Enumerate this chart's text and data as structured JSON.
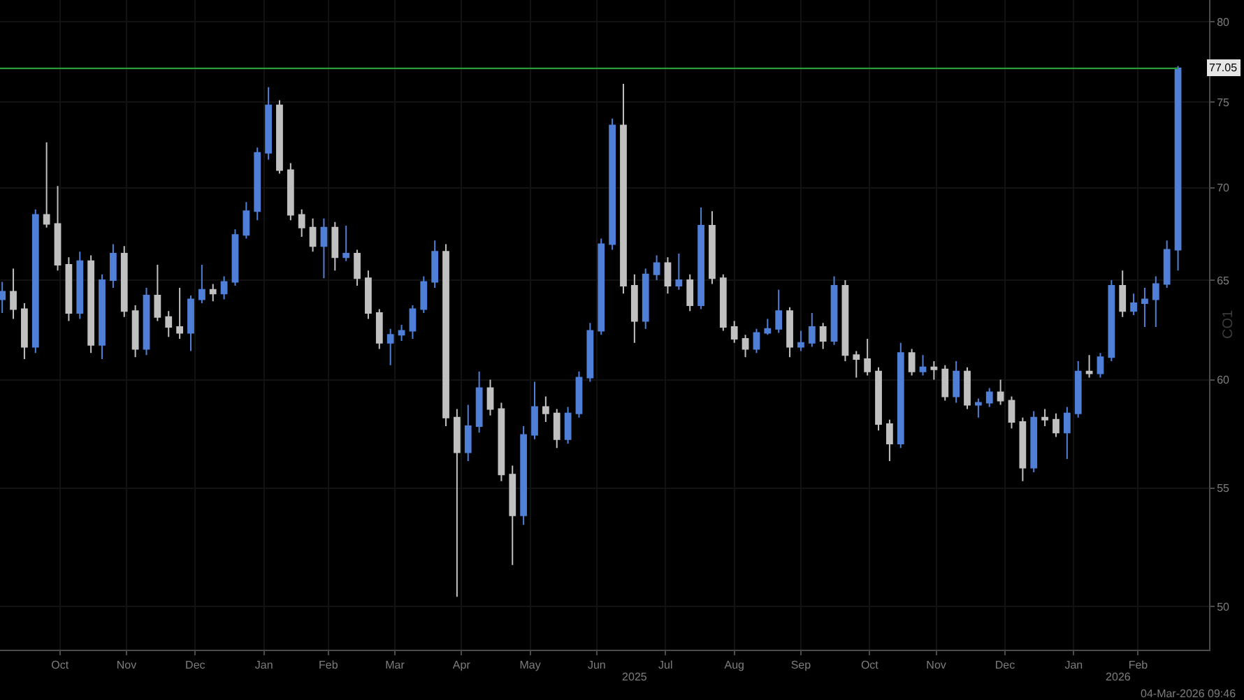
{
  "chart_data": {
    "type": "candlestick",
    "x": [
      "2024-09-20",
      "2024-09-25",
      "2024-09-30",
      "2024-10-05",
      "2024-10-10",
      "2024-10-15",
      "2024-10-20",
      "2024-10-25",
      "2024-10-30",
      "2024-11-04",
      "2024-11-09",
      "2024-11-14",
      "2024-11-19",
      "2024-11-24",
      "2024-11-29",
      "2024-12-04",
      "2024-12-09",
      "2024-12-14",
      "2024-12-19",
      "2024-12-24",
      "2024-12-29",
      "2025-01-03",
      "2025-01-08",
      "2025-01-13",
      "2025-01-18",
      "2025-01-23",
      "2025-01-28",
      "2025-02-02",
      "2025-02-07",
      "2025-02-12",
      "2025-02-17",
      "2025-02-22",
      "2025-02-27",
      "2025-03-04",
      "2025-03-09",
      "2025-03-14",
      "2025-03-19",
      "2025-03-24",
      "2025-03-29",
      "2025-04-03",
      "2025-04-08",
      "2025-04-13",
      "2025-04-18",
      "2025-04-23",
      "2025-04-28",
      "2025-05-03",
      "2025-05-08",
      "2025-05-13",
      "2025-05-18",
      "2025-05-23",
      "2025-05-28",
      "2025-06-02",
      "2025-06-07",
      "2025-06-12",
      "2025-06-17",
      "2025-06-22",
      "2025-06-27",
      "2025-07-02",
      "2025-07-07",
      "2025-07-12",
      "2025-07-17",
      "2025-07-22",
      "2025-07-27",
      "2025-08-01",
      "2025-08-06",
      "2025-08-11",
      "2025-08-16",
      "2025-08-21",
      "2025-08-26",
      "2025-08-31",
      "2025-09-05",
      "2025-09-10",
      "2025-09-15",
      "2025-09-20",
      "2025-09-25",
      "2025-09-30",
      "2025-10-05",
      "2025-10-10",
      "2025-10-15",
      "2025-10-20",
      "2025-10-25",
      "2025-10-30",
      "2025-11-04",
      "2025-11-09",
      "2025-11-14",
      "2025-11-19",
      "2025-11-24",
      "2025-11-29",
      "2025-12-04",
      "2025-12-09",
      "2025-12-14",
      "2025-12-19",
      "2025-12-24",
      "2025-12-29",
      "2026-01-03",
      "2026-01-08",
      "2026-01-13",
      "2026-01-18",
      "2026-01-23",
      "2026-01-28",
      "2026-02-02",
      "2026-02-07",
      "2026-02-12",
      "2026-02-17",
      "2026-02-22",
      "2026-02-27",
      "2026-03-04"
    ],
    "ohlc": [
      [
        64.0,
        64.9,
        63.3,
        64.4
      ],
      [
        64.4,
        65.6,
        63.0,
        63.5
      ],
      [
        63.5,
        63.8,
        61.0,
        61.6
      ],
      [
        61.6,
        68.8,
        61.3,
        68.5
      ],
      [
        68.5,
        72.6,
        67.8,
        68.0
      ],
      [
        68.0,
        70.1,
        65.5,
        65.8
      ],
      [
        65.8,
        66.2,
        62.9,
        63.3
      ],
      [
        63.3,
        66.5,
        63.0,
        66.0
      ],
      [
        66.0,
        66.3,
        61.3,
        61.7
      ],
      [
        61.7,
        65.3,
        61.0,
        65.0
      ],
      [
        65.0,
        66.9,
        64.6,
        66.4
      ],
      [
        66.4,
        66.8,
        63.1,
        63.4
      ],
      [
        63.4,
        63.7,
        61.1,
        61.5
      ],
      [
        61.5,
        64.6,
        61.2,
        64.2
      ],
      [
        64.2,
        65.8,
        62.9,
        63.1
      ],
      [
        63.1,
        63.4,
        62.1,
        62.6
      ],
      [
        62.6,
        64.6,
        62.0,
        62.3
      ],
      [
        62.3,
        64.2,
        61.4,
        64.0
      ],
      [
        64.0,
        65.8,
        63.8,
        64.5
      ],
      [
        64.5,
        64.8,
        63.9,
        64.3
      ],
      [
        64.3,
        65.2,
        64.0,
        64.9
      ],
      [
        64.9,
        67.7,
        64.7,
        67.4
      ],
      [
        67.4,
        69.2,
        67.2,
        68.7
      ],
      [
        68.7,
        72.3,
        68.2,
        72.0
      ],
      [
        72.0,
        75.9,
        71.6,
        74.8
      ],
      [
        74.8,
        75.1,
        70.8,
        71.0
      ],
      [
        71.0,
        71.4,
        68.2,
        68.5
      ],
      [
        68.5,
        68.8,
        67.3,
        67.8
      ],
      [
        67.8,
        68.3,
        66.5,
        66.8
      ],
      [
        66.8,
        68.3,
        65.1,
        67.8
      ],
      [
        67.8,
        68.1,
        65.5,
        66.2
      ],
      [
        66.2,
        67.9,
        66.0,
        66.4
      ],
      [
        66.4,
        66.6,
        64.7,
        65.1
      ],
      [
        65.1,
        65.5,
        63.0,
        63.3
      ],
      [
        63.3,
        63.5,
        61.5,
        61.8
      ],
      [
        61.8,
        62.5,
        60.7,
        62.2
      ],
      [
        62.2,
        62.7,
        61.9,
        62.4
      ],
      [
        62.4,
        63.7,
        62.0,
        63.5
      ],
      [
        63.5,
        65.2,
        63.3,
        64.9
      ],
      [
        64.9,
        67.1,
        64.6,
        66.5
      ],
      [
        66.5,
        66.9,
        57.8,
        58.2
      ],
      [
        58.2,
        58.6,
        50.4,
        56.6
      ],
      [
        56.6,
        58.8,
        56.2,
        57.8
      ],
      [
        57.8,
        60.4,
        57.5,
        59.6
      ],
      [
        59.6,
        60.0,
        58.3,
        58.6
      ],
      [
        58.6,
        58.9,
        55.3,
        55.6
      ],
      [
        55.6,
        56.0,
        51.7,
        53.8
      ],
      [
        53.8,
        57.8,
        53.4,
        57.4
      ],
      [
        57.4,
        59.9,
        57.2,
        58.7
      ],
      [
        58.7,
        59.2,
        58.0,
        58.4
      ],
      [
        58.4,
        58.6,
        56.8,
        57.2
      ],
      [
        57.2,
        58.7,
        57.0,
        58.4
      ],
      [
        58.4,
        60.4,
        58.2,
        60.1
      ],
      [
        60.1,
        62.8,
        59.9,
        62.4
      ],
      [
        62.4,
        67.2,
        62.2,
        66.9
      ],
      [
        66.9,
        74.0,
        66.6,
        73.6
      ],
      [
        73.6,
        76.1,
        64.3,
        64.7
      ],
      [
        64.7,
        65.3,
        61.8,
        62.9
      ],
      [
        62.9,
        65.6,
        62.5,
        65.3
      ],
      [
        65.3,
        66.3,
        65.0,
        65.9
      ],
      [
        65.9,
        66.2,
        64.3,
        64.7
      ],
      [
        64.7,
        66.4,
        64.5,
        65.0
      ],
      [
        65.0,
        65.3,
        63.4,
        63.7
      ],
      [
        63.7,
        68.9,
        63.5,
        67.9
      ],
      [
        67.9,
        68.7,
        64.8,
        65.1
      ],
      [
        65.1,
        65.3,
        62.4,
        62.6
      ],
      [
        62.6,
        62.9,
        61.8,
        62.0
      ],
      [
        62.0,
        62.2,
        61.1,
        61.5
      ],
      [
        61.5,
        62.5,
        61.3,
        62.3
      ],
      [
        62.3,
        63.0,
        62.2,
        62.5
      ],
      [
        62.5,
        64.5,
        62.3,
        63.4
      ],
      [
        63.4,
        63.6,
        61.1,
        61.6
      ],
      [
        61.6,
        62.4,
        61.4,
        61.8
      ],
      [
        61.8,
        63.3,
        61.6,
        62.6
      ],
      [
        62.6,
        62.8,
        61.5,
        61.9
      ],
      [
        61.9,
        65.2,
        61.7,
        64.7
      ],
      [
        64.7,
        65.0,
        60.9,
        61.2
      ],
      [
        61.2,
        61.4,
        60.1,
        61.0
      ],
      [
        61.0,
        62.0,
        60.2,
        60.4
      ],
      [
        60.4,
        60.6,
        57.6,
        57.9
      ],
      [
        57.9,
        58.1,
        56.2,
        57.0
      ],
      [
        57.0,
        61.8,
        56.8,
        61.3
      ],
      [
        61.3,
        61.5,
        60.2,
        60.4
      ],
      [
        60.4,
        61.2,
        60.2,
        60.6
      ],
      [
        60.6,
        60.9,
        60.0,
        60.5
      ],
      [
        60.5,
        60.7,
        59.0,
        59.2
      ],
      [
        59.2,
        60.9,
        58.9,
        60.4
      ],
      [
        60.4,
        60.6,
        58.6,
        58.8
      ],
      [
        58.8,
        59.1,
        58.2,
        58.9
      ],
      [
        58.9,
        59.6,
        58.7,
        59.4
      ],
      [
        59.4,
        60.0,
        58.8,
        59.0
      ],
      [
        59.0,
        59.2,
        57.7,
        58.0
      ],
      [
        58.0,
        58.2,
        55.3,
        55.9
      ],
      [
        55.9,
        58.5,
        55.7,
        58.2
      ],
      [
        58.2,
        58.6,
        57.8,
        58.1
      ],
      [
        58.1,
        58.4,
        57.3,
        57.5
      ],
      [
        57.5,
        58.7,
        56.3,
        58.4
      ],
      [
        58.4,
        60.9,
        58.2,
        60.4
      ],
      [
        60.4,
        61.2,
        60.1,
        60.3
      ],
      [
        60.3,
        61.3,
        60.1,
        61.1
      ],
      [
        61.1,
        65.0,
        60.9,
        64.7
      ],
      [
        64.7,
        65.5,
        63.1,
        63.4
      ],
      [
        63.4,
        64.3,
        63.2,
        63.8
      ],
      [
        63.8,
        64.6,
        62.6,
        64.0
      ],
      [
        64.0,
        65.2,
        62.6,
        64.8
      ],
      [
        64.8,
        67.1,
        64.6,
        66.6
      ],
      [
        66.6,
        77.2,
        65.5,
        77.05
      ]
    ],
    "colors": [
      "#4f7fd6",
      "#c0c0c0",
      "#c0c0c0",
      "#4f7fd6",
      "#c0c0c0",
      "#c0c0c0",
      "#c0c0c0",
      "#4f7fd6",
      "#c0c0c0",
      "#4f7fd6",
      "#4f7fd6",
      "#c0c0c0",
      "#c0c0c0",
      "#4f7fd6",
      "#c0c0c0",
      "#c0c0c0",
      "#c0c0c0",
      "#4f7fd6",
      "#4f7fd6",
      "#c0c0c0",
      "#4f7fd6",
      "#4f7fd6",
      "#4f7fd6",
      "#4f7fd6",
      "#4f7fd6",
      "#c0c0c0",
      "#c0c0c0",
      "#c0c0c0",
      "#c0c0c0",
      "#4f7fd6",
      "#c0c0c0",
      "#4f7fd6",
      "#c0c0c0",
      "#c0c0c0",
      "#c0c0c0",
      "#4f7fd6",
      "#4f7fd6",
      "#4f7fd6",
      "#4f7fd6",
      "#4f7fd6",
      "#c0c0c0",
      "#c0c0c0",
      "#4f7fd6",
      "#4f7fd6",
      "#c0c0c0",
      "#c0c0c0",
      "#c0c0c0",
      "#4f7fd6",
      "#4f7fd6",
      "#c0c0c0",
      "#c0c0c0",
      "#4f7fd6",
      "#4f7fd6",
      "#4f7fd6",
      "#4f7fd6",
      "#4f7fd6",
      "#c0c0c0",
      "#c0c0c0",
      "#4f7fd6",
      "#4f7fd6",
      "#c0c0c0",
      "#4f7fd6",
      "#c0c0c0",
      "#4f7fd6",
      "#c0c0c0",
      "#c0c0c0",
      "#c0c0c0",
      "#c0c0c0",
      "#4f7fd6",
      "#4f7fd6",
      "#4f7fd6",
      "#c0c0c0",
      "#4f7fd6",
      "#4f7fd6",
      "#c0c0c0",
      "#4f7fd6",
      "#c0c0c0",
      "#c0c0c0",
      "#c0c0c0",
      "#c0c0c0",
      "#c0c0c0",
      "#4f7fd6",
      "#c0c0c0",
      "#4f7fd6",
      "#c0c0c0",
      "#c0c0c0",
      "#4f7fd6",
      "#c0c0c0",
      "#4f7fd6",
      "#4f7fd6",
      "#c0c0c0",
      "#c0c0c0",
      "#c0c0c0",
      "#4f7fd6",
      "#c0c0c0",
      "#c0c0c0",
      "#4f7fd6",
      "#4f7fd6",
      "#c0c0c0",
      "#4f7fd6",
      "#4f7fd6",
      "#c0c0c0",
      "#4f7fd6",
      "#4f7fd6",
      "#4f7fd6",
      "#4f7fd6",
      "#4f7fd6"
    ],
    "xlim": [
      "2024-09-19",
      "2026-03-18"
    ],
    "xticks": [
      {
        "value": "2024-10-16",
        "label": "Oct"
      },
      {
        "value": "2024-11-15",
        "label": "Nov"
      },
      {
        "value": "2024-12-16",
        "label": "Dec"
      },
      {
        "value": "2025-01-16",
        "label": "Jan"
      },
      {
        "value": "2025-02-14",
        "label": "Feb"
      },
      {
        "value": "2025-03-16",
        "label": "Mar"
      },
      {
        "value": "2025-04-15",
        "label": "Apr"
      },
      {
        "value": "2025-05-16",
        "label": "May"
      },
      {
        "value": "2025-06-15",
        "label": "Jun"
      },
      {
        "value": "2025-07-16",
        "label": "Jul"
      },
      {
        "value": "2025-08-16",
        "label": "Aug"
      },
      {
        "value": "2025-09-15",
        "label": "Sep"
      },
      {
        "value": "2025-10-16",
        "label": "Oct"
      },
      {
        "value": "2025-11-15",
        "label": "Nov"
      },
      {
        "value": "2025-12-16",
        "label": "Dec"
      },
      {
        "value": "2026-01-16",
        "label": "Jan"
      },
      {
        "value": "2026-02-14",
        "label": "Feb"
      }
    ],
    "x2lim": [
      "2024-09-19",
      "2026-03-18"
    ],
    "x2ticks": [
      {
        "value": "2025-07-02",
        "label": "2025"
      },
      {
        "value": "2026-02-05",
        "label": "2026"
      }
    ],
    "ylim": [
      48.3,
      81.4
    ],
    "yticks": [
      50,
      55,
      60,
      65,
      70,
      75,
      80
    ],
    "ylabel": "CO1",
    "log": "y",
    "grid": true,
    "ref_lines": [
      {
        "axis": "y",
        "value": 77.05,
        "label": "77.05",
        "color": "#2a9a34",
        "line_style": "solid"
      }
    ],
    "annotations": [
      "04-Mar-2026 09:46"
    ]
  }
}
